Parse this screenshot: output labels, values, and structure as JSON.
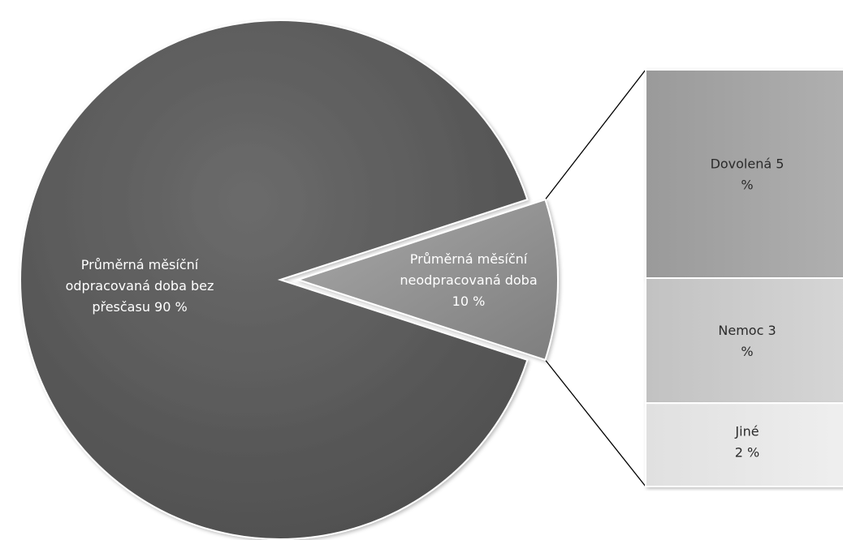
{
  "chart_data": {
    "type": "pie",
    "subtype": "pie-of-bar",
    "slices": [
      {
        "label_lines": [
          "Průměrná měsíční",
          "odpracovaná doba bez",
          "přesčasu 90 %"
        ],
        "value": 90,
        "color": "#5f5f5f",
        "label_color": "#ffffff"
      },
      {
        "label_lines": [
          "Průměrná měsíční",
          "neodpracovaná doba",
          "10 %"
        ],
        "value": 10,
        "color": "#8f8f8f",
        "label_color": "#ffffff",
        "exploded": true
      }
    ],
    "breakdown": [
      {
        "label_lines": [
          "Dovolená 5",
          "%"
        ],
        "value": 5,
        "color": "#a2a2a2",
        "label_color": "#2b2b2b"
      },
      {
        "label_lines": [
          "Nemoc 3",
          "%"
        ],
        "value": 3,
        "color": "#cbcbcb",
        "label_color": "#2b2b2b"
      },
      {
        "label_lines": [
          "Jiné",
          "2 %"
        ],
        "value": 2,
        "color": "#e6e6e6",
        "label_color": "#2b2b2b"
      }
    ],
    "legend": "none"
  }
}
